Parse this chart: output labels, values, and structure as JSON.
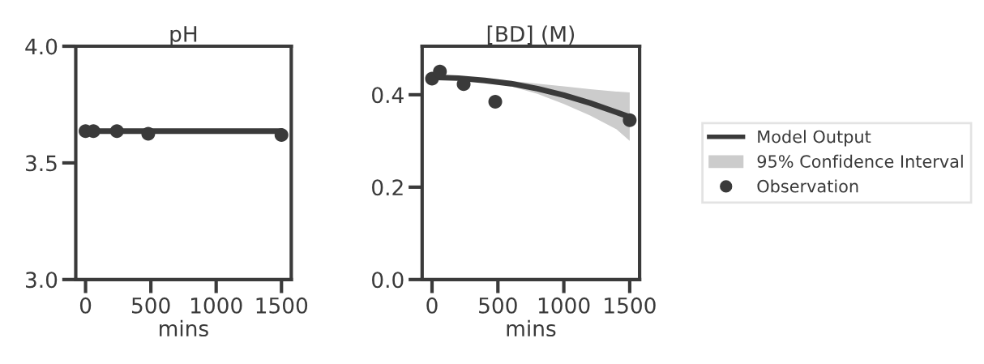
{
  "chart_data": [
    {
      "type": "line",
      "title": "pH",
      "xlabel": "mins",
      "xlim": [
        -75,
        1575
      ],
      "xticks": [
        0,
        500,
        1000,
        1500
      ],
      "ylim": [
        3.0,
        4.0
      ],
      "yticks": [
        {
          "value": 3.0,
          "label": "3.0"
        },
        {
          "value": 3.5,
          "label": "3.5"
        },
        {
          "value": 4.0,
          "label": "4.0"
        }
      ],
      "series": [
        {
          "color": "#3a3a3a",
          "x": [
            0,
            1500
          ],
          "values": [
            3.636,
            3.636
          ]
        },
        {
          "type": "scatter",
          "color": "#3a3a3a",
          "x": [
            0,
            60,
            240,
            480,
            1500
          ],
          "values": [
            3.636,
            3.636,
            3.636,
            3.625,
            3.62
          ]
        }
      ]
    },
    {
      "type": "line",
      "title": "[BD] (M)",
      "xlabel": "mins",
      "xlim": [
        -75,
        1575
      ],
      "xticks": [
        0,
        500,
        1000,
        1500
      ],
      "ylim": [
        0.0,
        0.505
      ],
      "yticks": [
        {
          "value": 0.0,
          "label": "0.0"
        },
        {
          "value": 0.2,
          "label": "0.2"
        },
        {
          "value": 0.4,
          "label": "0.4"
        }
      ],
      "legend": "right",
      "annotations": [
        "95% Confidence Interval"
      ],
      "series": [
        {
          "name": "Model Output",
          "color": "#3a3a3a",
          "x": [
            0,
            200,
            400,
            600,
            800,
            1000,
            1200,
            1400,
            1500
          ],
          "values": [
            0.438,
            0.436,
            0.431,
            0.424,
            0.413,
            0.399,
            0.382,
            0.362,
            0.352
          ],
          "lower": [
            0.438,
            0.435,
            0.428,
            0.418,
            0.402,
            0.38,
            0.355,
            0.325,
            0.3
          ],
          "upper": [
            0.438,
            0.437,
            0.434,
            0.43,
            0.424,
            0.418,
            0.412,
            0.407,
            0.405
          ]
        },
        {
          "name": "Observation",
          "type": "scatter",
          "color": "#3a3a3a",
          "x": [
            0,
            60,
            240,
            480,
            1500
          ],
          "values": [
            0.435,
            0.45,
            0.423,
            0.385,
            0.345
          ]
        }
      ]
    }
  ]
}
